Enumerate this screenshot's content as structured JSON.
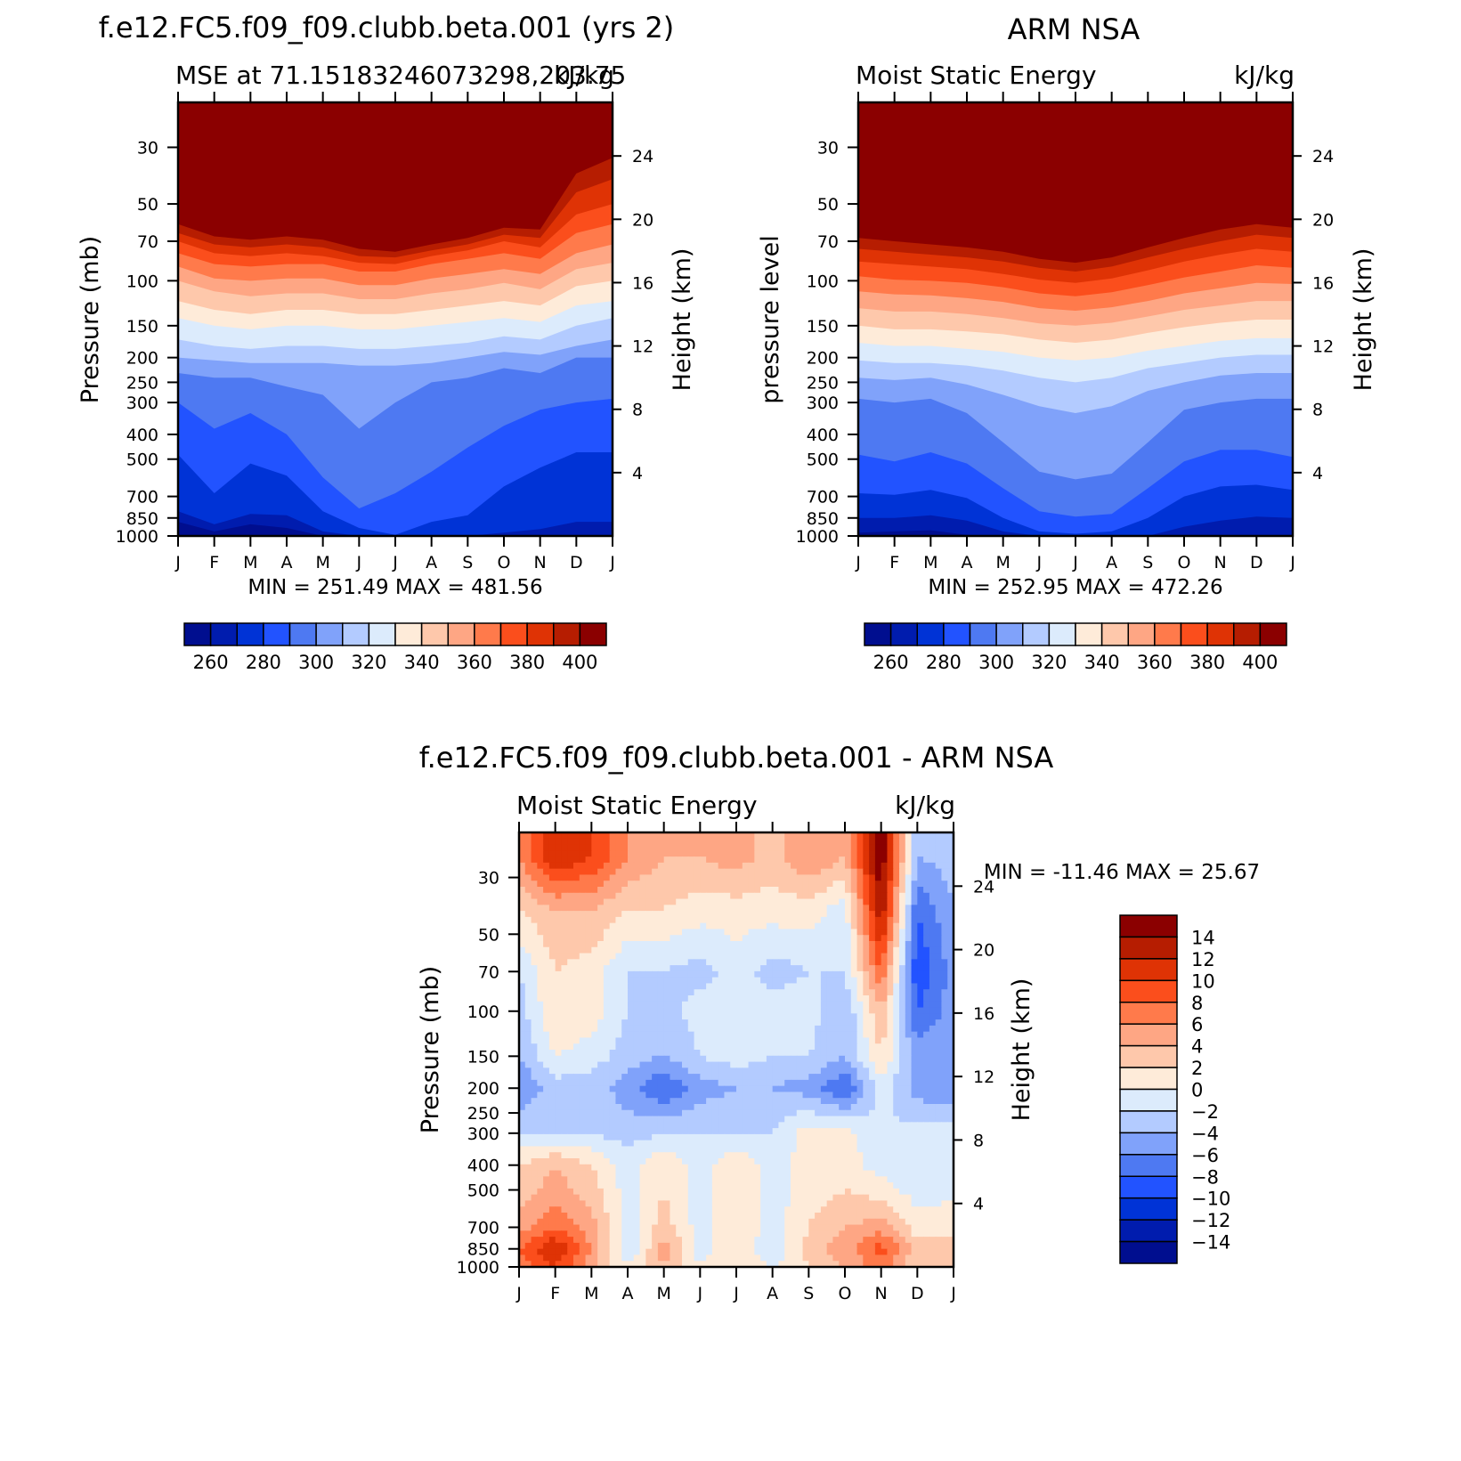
{
  "chart_data": [
    {
      "type": "heatmap",
      "title": "f.e12.FC5.f09_f09.clubb.beta.001 (yrs 2)",
      "subtitle_left": "MSE at 71.15183246073298,203.75",
      "subtitle_right": "kJ/kg",
      "ylabel": "Pressure (mb)",
      "ylabel_right": "Height (km)",
      "months": [
        "J",
        "F",
        "M",
        "A",
        "M",
        "J",
        "J",
        "A",
        "S",
        "O",
        "N",
        "D",
        "J"
      ],
      "pressure_ticks": [
        "30",
        "50",
        "70",
        "100",
        "150",
        "200",
        "250",
        "300",
        "400",
        "500",
        "700",
        "850",
        "1000"
      ],
      "height_ticks": [
        "24",
        "20",
        "16",
        "12",
        "8",
        "4"
      ],
      "ylim_mb": [
        20,
        1000
      ],
      "stats": "MIN = 251.49 MAX = 481.56",
      "min": 251.49,
      "max": 481.56,
      "colorbar_ticks": [
        "260",
        "280",
        "300",
        "320",
        "340",
        "360",
        "380",
        "400"
      ],
      "contour_levels": [
        260,
        270,
        280,
        290,
        300,
        310,
        320,
        330,
        340,
        350,
        360,
        370,
        380,
        390,
        400
      ],
      "level_pressures_mb": {
        "260": [
          880,
          960,
          900,
          930,
          1010,
          1010,
          1010,
          1010,
          1010,
          1010,
          1010,
          1010,
          1010
        ],
        "270": [
          800,
          900,
          820,
          830,
          960,
          1010,
          1010,
          1010,
          1010,
          970,
          940,
          880,
          880
        ],
        "280": [
          480,
          680,
          520,
          580,
          800,
          930,
          990,
          880,
          830,
          640,
          540,
          470,
          470
        ],
        "290": [
          300,
          380,
          330,
          400,
          590,
          780,
          680,
          560,
          450,
          370,
          320,
          300,
          290
        ],
        "300": [
          230,
          240,
          240,
          260,
          280,
          380,
          300,
          250,
          240,
          220,
          230,
          200,
          200
        ],
        "310": [
          200,
          205,
          210,
          210,
          210,
          215,
          215,
          210,
          200,
          190,
          195,
          180,
          170
        ],
        "320": [
          170,
          180,
          185,
          180,
          180,
          185,
          185,
          180,
          175,
          165,
          170,
          150,
          140
        ],
        "330": [
          140,
          150,
          155,
          150,
          150,
          155,
          155,
          150,
          145,
          140,
          145,
          125,
          120
        ],
        "340": [
          120,
          130,
          135,
          130,
          130,
          135,
          135,
          130,
          125,
          120,
          125,
          105,
          100
        ],
        "350": [
          100,
          110,
          115,
          112,
          112,
          118,
          118,
          112,
          108,
          102,
          108,
          90,
          85
        ],
        "360": [
          88,
          98,
          100,
          98,
          98,
          104,
          104,
          98,
          94,
          90,
          94,
          78,
          72
        ],
        "370": [
          78,
          86,
          88,
          86,
          86,
          92,
          92,
          86,
          82,
          78,
          82,
          65,
          60
        ],
        "380": [
          70,
          78,
          80,
          78,
          80,
          85,
          86,
          80,
          76,
          70,
          74,
          55,
          50
        ],
        "390": [
          65,
          72,
          74,
          72,
          74,
          80,
          81,
          76,
          72,
          66,
          68,
          45,
          40
        ],
        "400": [
          60,
          67,
          69,
          67,
          69,
          75,
          77,
          72,
          68,
          62,
          63,
          38,
          33
        ]
      }
    },
    {
      "type": "heatmap",
      "title": "ARM NSA",
      "subtitle_left": "Moist Static Energy",
      "subtitle_right": "kJ/kg",
      "ylabel": "pressure level",
      "ylabel_right": "Height (km)",
      "months": [
        "J",
        "F",
        "M",
        "A",
        "M",
        "J",
        "J",
        "A",
        "S",
        "O",
        "N",
        "D",
        "J"
      ],
      "pressure_ticks": [
        "30",
        "50",
        "70",
        "100",
        "150",
        "200",
        "250",
        "300",
        "400",
        "500",
        "700",
        "850",
        "1000"
      ],
      "height_ticks": [
        "24",
        "20",
        "16",
        "12",
        "8",
        "4"
      ],
      "ylim_mb": [
        20,
        1000
      ],
      "stats": "MIN = 252.95 MAX = 472.26",
      "min": 252.95,
      "max": 472.26,
      "colorbar_ticks": [
        "260",
        "280",
        "300",
        "320",
        "340",
        "360",
        "380",
        "400"
      ],
      "contour_levels": [
        260,
        270,
        280,
        290,
        300,
        310,
        320,
        330,
        340,
        350,
        360,
        370,
        380,
        390,
        400
      ],
      "level_pressures_mb": {
        "260": [
          970,
          960,
          950,
          990,
          1010,
          1010,
          1010,
          1010,
          1010,
          1010,
          1010,
          1000,
          990
        ],
        "270": [
          850,
          850,
          830,
          870,
          960,
          1010,
          1010,
          1010,
          1010,
          920,
          870,
          840,
          850
        ],
        "280": [
          680,
          690,
          660,
          710,
          850,
          960,
          980,
          960,
          850,
          700,
          640,
          630,
          660
        ],
        "290": [
          480,
          510,
          470,
          520,
          650,
          800,
          840,
          820,
          650,
          510,
          460,
          460,
          490
        ],
        "300": [
          290,
          300,
          290,
          330,
          430,
          560,
          600,
          570,
          430,
          320,
          300,
          290,
          290
        ],
        "310": [
          240,
          245,
          240,
          255,
          280,
          310,
          330,
          310,
          270,
          250,
          235,
          230,
          230
        ],
        "320": [
          205,
          210,
          210,
          215,
          225,
          240,
          250,
          240,
          220,
          210,
          200,
          195,
          195
        ],
        "330": [
          175,
          180,
          180,
          185,
          190,
          200,
          205,
          200,
          188,
          180,
          172,
          168,
          168
        ],
        "340": [
          150,
          155,
          155,
          158,
          162,
          170,
          175,
          170,
          160,
          152,
          146,
          142,
          142
        ],
        "350": [
          128,
          132,
          132,
          135,
          140,
          147,
          150,
          146,
          138,
          130,
          125,
          120,
          120
        ],
        "360": [
          110,
          113,
          114,
          117,
          121,
          128,
          131,
          127,
          120,
          112,
          107,
          102,
          103
        ],
        "370": [
          96,
          99,
          100,
          102,
          106,
          112,
          115,
          111,
          104,
          97,
          92,
          87,
          89
        ],
        "380": [
          84,
          86,
          88,
          90,
          94,
          99,
          102,
          98,
          91,
          84,
          79,
          75,
          77
        ],
        "390": [
          75,
          77,
          79,
          81,
          84,
          89,
          92,
          88,
          81,
          75,
          70,
          66,
          68
        ],
        "400": [
          68,
          70,
          72,
          74,
          77,
          82,
          85,
          81,
          74,
          68,
          63,
          60,
          62
        ]
      }
    },
    {
      "type": "heatmap",
      "title": "f.e12.FC5.f09_f09.clubb.beta.001 - ARM NSA",
      "subtitle_left": "Moist Static Energy",
      "subtitle_right": "kJ/kg",
      "ylabel": "Pressure (mb)",
      "ylabel_right": "Height (km)",
      "months": [
        "J",
        "F",
        "M",
        "A",
        "M",
        "J",
        "J",
        "A",
        "S",
        "O",
        "N",
        "D",
        "J"
      ],
      "pressure_ticks": [
        "30",
        "50",
        "70",
        "100",
        "150",
        "200",
        "250",
        "300",
        "400",
        "500",
        "700",
        "850",
        "1000"
      ],
      "height_ticks": [
        "24",
        "20",
        "16",
        "12",
        "8",
        "4"
      ],
      "ylim_mb": [
        20,
        1000
      ],
      "stats": "MIN = -11.46 MAX =   25.67",
      "min": -11.46,
      "max": 25.67,
      "colorbar_ticks": [
        "14",
        "12",
        "10",
        "8",
        "6",
        "4",
        "2",
        "0",
        "-2",
        "-4",
        "-6",
        "-8",
        "-10",
        "-12",
        "-14"
      ],
      "contour_levels": [
        -14,
        -12,
        -10,
        -8,
        -6,
        -4,
        -2,
        0,
        2,
        4,
        6,
        8,
        10,
        12,
        14
      ],
      "field_samples": [
        {
          "pressure_mb": 25,
          "values": [
            6,
            12,
            10,
            6,
            4,
            4,
            5,
            3,
            6,
            4,
            16,
            -4,
            -3
          ]
        },
        {
          "pressure_mb": 40,
          "values": [
            2,
            4,
            4,
            2,
            2,
            1,
            1,
            1,
            1,
            -1,
            14,
            -8,
            -4
          ]
        },
        {
          "pressure_mb": 70,
          "values": [
            -2,
            2,
            1,
            -2,
            -2,
            -3,
            -1,
            -3,
            -2,
            -2,
            8,
            -10,
            -5
          ]
        },
        {
          "pressure_mb": 100,
          "values": [
            -3,
            2,
            1,
            -2,
            -3,
            -1,
            0,
            -1,
            -1,
            -4,
            4,
            -8,
            -5
          ]
        },
        {
          "pressure_mb": 150,
          "values": [
            -4,
            0,
            -1,
            -3,
            -4,
            -2,
            -1,
            -2,
            -2,
            -4,
            2,
            -5,
            -4
          ]
        },
        {
          "pressure_mb": 200,
          "values": [
            -6,
            -3,
            -3,
            -5,
            -8,
            -5,
            -4,
            -4,
            -5,
            -8,
            -1,
            -5,
            -6
          ]
        },
        {
          "pressure_mb": 300,
          "values": [
            -2,
            -2,
            -2,
            -3,
            -2,
            -2,
            -2,
            -2,
            1,
            1,
            -2,
            -1,
            -1
          ]
        },
        {
          "pressure_mb": 400,
          "values": [
            2,
            4,
            2,
            -1,
            2,
            -1,
            2,
            -1,
            1,
            1,
            -1,
            -1,
            -1
          ]
        },
        {
          "pressure_mb": 500,
          "values": [
            3,
            5,
            3,
            -1,
            2,
            -1,
            2,
            -1,
            1,
            2,
            1,
            -1,
            -1
          ]
        },
        {
          "pressure_mb": 700,
          "values": [
            5,
            8,
            5,
            -1,
            3,
            -1,
            2,
            -1,
            2,
            4,
            5,
            1,
            2
          ]
        },
        {
          "pressure_mb": 850,
          "values": [
            8,
            12,
            6,
            -2,
            5,
            -1,
            2,
            -2,
            3,
            5,
            9,
            3,
            2
          ]
        },
        {
          "pressure_mb": 1000,
          "values": [
            6,
            10,
            5,
            0,
            4,
            0,
            2,
            0,
            2,
            4,
            7,
            2,
            2
          ]
        }
      ]
    }
  ],
  "palette": {
    "msecolors": [
      "#000e8f",
      "#001cae",
      "#0033d6",
      "#2253ff",
      "#4e79f2",
      "#80a2fa",
      "#b3cbff",
      "#dcebfc",
      "#feebd9",
      "#fec8ab",
      "#fea684",
      "#ff7a4b",
      "#fb4e1c",
      "#df3305",
      "#b61d01",
      "#8b0000"
    ],
    "diffcolors": [
      "#000e8f",
      "#001cae",
      "#0033d6",
      "#2253ff",
      "#4e79f2",
      "#80a2fa",
      "#b3cbff",
      "#dcebfc",
      "#feebd9",
      "#fec8ab",
      "#fea684",
      "#ff7a4b",
      "#fb4e1c",
      "#df3305",
      "#b61d01",
      "#8b0000"
    ]
  }
}
